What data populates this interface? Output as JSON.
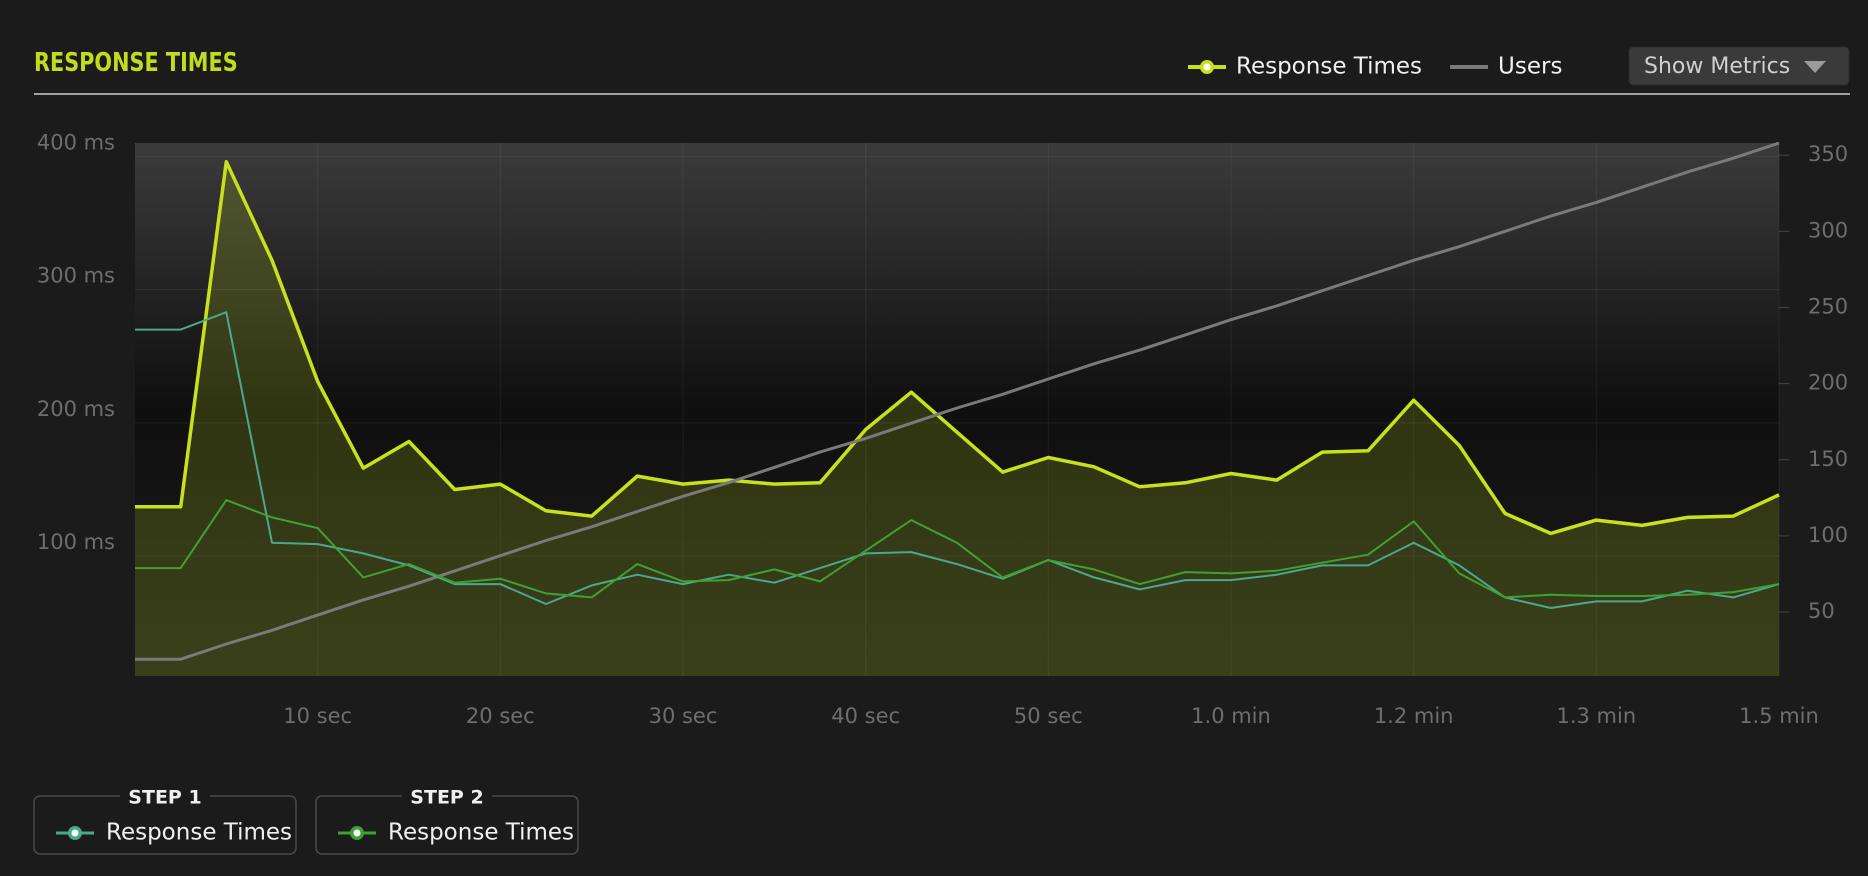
{
  "controls": {
    "button": "Show Metrics"
  },
  "chart_data": {
    "type": "line",
    "title": "RESPONSE TIMES",
    "x": [
      0,
      2.5,
      5,
      7.5,
      10,
      12.5,
      15,
      17.5,
      20,
      22.5,
      25,
      27.5,
      30,
      32.5,
      35,
      37.5,
      40,
      42.5,
      45,
      47.5,
      50,
      52.5,
      55,
      57.5,
      60,
      62.5,
      65,
      67.5,
      70,
      72.5,
      75,
      77.5,
      80,
      82.5,
      85,
      87.5,
      90
    ],
    "xlim": [
      0,
      90
    ],
    "xticks": [
      {
        "value": 10,
        "label": "10 sec"
      },
      {
        "value": 20,
        "label": "20 sec"
      },
      {
        "value": 30,
        "label": "30 sec"
      },
      {
        "value": 40,
        "label": "40 sec"
      },
      {
        "value": 50,
        "label": "50 sec"
      },
      {
        "value": 60,
        "label": "1.0 min"
      },
      {
        "value": 70,
        "label": "1.2 min"
      },
      {
        "value": 80,
        "label": "1.3 min"
      },
      {
        "value": 90,
        "label": "1.5 min"
      }
    ],
    "ylim": [
      10,
      410
    ],
    "yticks": [
      {
        "value": 100,
        "label": "100 ms"
      },
      {
        "value": 200,
        "label": "200 ms"
      },
      {
        "value": 300,
        "label": "300 ms"
      },
      {
        "value": 400,
        "label": "400 ms"
      }
    ],
    "y2lim": [
      8,
      358
    ],
    "y2ticks": [
      50,
      100,
      150,
      200,
      250,
      300,
      350
    ],
    "grid": true,
    "series": [
      {
        "name": "Response Times",
        "color": "#c8e11c",
        "area": true,
        "values": [
          137,
          137,
          396,
          322,
          231,
          166,
          186,
          150,
          154,
          134,
          130,
          160,
          154,
          157,
          154,
          155,
          195,
          223,
          193,
          163,
          174,
          167,
          152,
          155,
          162,
          157,
          178,
          179,
          217,
          183,
          132,
          117,
          127,
          123,
          129,
          130,
          146
        ]
      },
      {
        "name": "Users",
        "color": "#7a7a7a",
        "axis": "y2",
        "values": [
          19,
          19,
          29,
          38,
          48,
          58,
          67,
          77,
          87,
          97,
          106,
          116,
          126,
          135,
          145,
          155,
          164,
          174,
          184,
          193,
          203,
          213,
          222,
          232,
          242,
          251,
          261,
          271,
          281,
          290,
          300,
          310,
          319,
          329,
          339,
          348,
          358
        ]
      },
      {
        "name": "Response Times",
        "group": "STEP 1",
        "color": "#4aa88c",
        "values": [
          270,
          270,
          283,
          110,
          109,
          102,
          93,
          79,
          79,
          64,
          78,
          86,
          79,
          86,
          80,
          91,
          102,
          103,
          94,
          83,
          97,
          84,
          75,
          82,
          82,
          86,
          93,
          93,
          110,
          93,
          69,
          61,
          66,
          66,
          74,
          69,
          79
        ]
      },
      {
        "name": "Response Times",
        "group": "STEP 2",
        "color": "#3fa035",
        "values": [
          91,
          91,
          142,
          129,
          121,
          84,
          94,
          80,
          83,
          72,
          69,
          94,
          81,
          82,
          90,
          81,
          104,
          127,
          110,
          84,
          97,
          90,
          79,
          88,
          87,
          89,
          95,
          101,
          126,
          87,
          69,
          71,
          70,
          70,
          71,
          73,
          79
        ]
      }
    ]
  }
}
